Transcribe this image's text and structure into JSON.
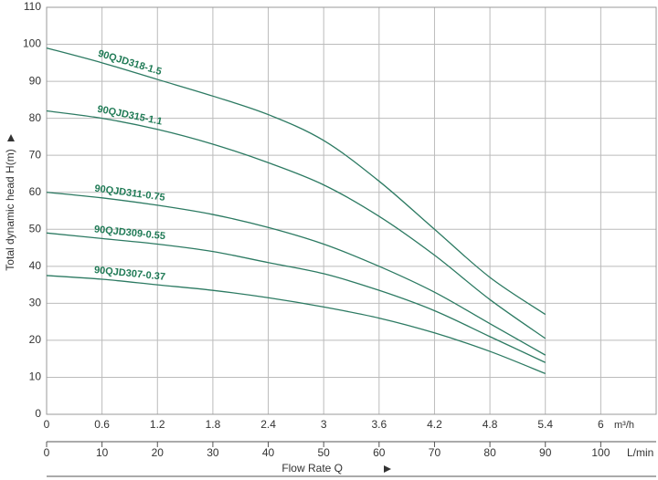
{
  "chart_data": {
    "type": "line",
    "y_label": "Total dynamic head H(m)",
    "x_unit": "m³/h",
    "x2_unit": "L/min",
    "x2_label": "Flow Rate Q",
    "x": [
      0,
      0.6,
      1.2,
      1.8,
      2.4,
      3.0,
      3.6,
      4.2,
      4.8,
      5.4
    ],
    "xlim": [
      0,
      6.6
    ],
    "xticks": [
      0,
      0.6,
      1.2,
      1.8,
      2.4,
      3,
      3.6,
      4.2,
      4.8,
      5.4,
      6
    ],
    "x2lim": [
      0,
      110
    ],
    "x2ticks": [
      0,
      10,
      20,
      30,
      40,
      50,
      60,
      70,
      80,
      90,
      100
    ],
    "ylim": [
      0,
      110
    ],
    "yticks": [
      0,
      10,
      20,
      30,
      40,
      50,
      60,
      70,
      80,
      90,
      100,
      110
    ],
    "grid": true,
    "series": [
      {
        "name": "90QJD318-1.5",
        "color": "#2c7a62",
        "values": [
          99,
          95,
          90.5,
          86,
          81,
          74,
          63,
          50,
          37,
          27
        ]
      },
      {
        "name": "90QJD315-1.1",
        "color": "#2c7a62",
        "values": [
          82,
          80,
          77,
          73,
          68,
          62,
          53.5,
          43,
          31,
          20.5
        ]
      },
      {
        "name": "90QJD311-0.75",
        "color": "#2c7a62",
        "values": [
          60,
          58.5,
          56.5,
          54,
          50.5,
          46,
          40,
          33,
          24.5,
          16
        ]
      },
      {
        "name": "90QJD309-0.55",
        "color": "#2c7a62",
        "values": [
          49,
          47.5,
          46,
          44,
          41,
          38,
          33.5,
          28,
          21,
          14
        ]
      },
      {
        "name": "90QJD307-0.37",
        "color": "#2c7a62",
        "values": [
          37.5,
          36.5,
          35,
          33.5,
          31.5,
          29,
          26,
          22,
          17,
          11
        ]
      }
    ]
  }
}
